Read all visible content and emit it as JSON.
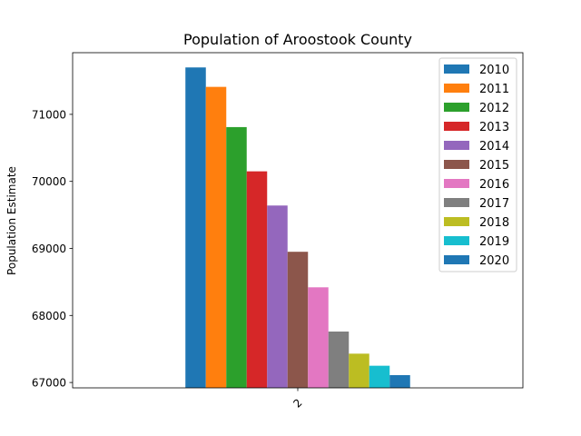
{
  "chart_data": {
    "type": "bar",
    "title": "Population of Aroostook County",
    "xlabel": "",
    "ylabel": "Population Estimate",
    "categories": [
      "2"
    ],
    "series": [
      {
        "name": "2010",
        "values": [
          71700
        ],
        "color": "#1f77b4"
      },
      {
        "name": "2011",
        "values": [
          71410
        ],
        "color": "#ff7f0e"
      },
      {
        "name": "2012",
        "values": [
          70810
        ],
        "color": "#2ca02c"
      },
      {
        "name": "2013",
        "values": [
          70150
        ],
        "color": "#d62728"
      },
      {
        "name": "2014",
        "values": [
          69640
        ],
        "color": "#9467bd"
      },
      {
        "name": "2015",
        "values": [
          68950
        ],
        "color": "#8c564b"
      },
      {
        "name": "2016",
        "values": [
          68420
        ],
        "color": "#e377c2"
      },
      {
        "name": "2017",
        "values": [
          67760
        ],
        "color": "#7f7f7f"
      },
      {
        "name": "2018",
        "values": [
          67430
        ],
        "color": "#bcbd22"
      },
      {
        "name": "2019",
        "values": [
          67250
        ],
        "color": "#17becf"
      },
      {
        "name": "2020",
        "values": [
          67110
        ],
        "color": "#1f77b4"
      }
    ],
    "ylim": [
      66920,
      71920
    ],
    "yticks": [
      67000,
      68000,
      69000,
      70000,
      71000
    ],
    "grid": false,
    "legend_position": "top-right"
  }
}
